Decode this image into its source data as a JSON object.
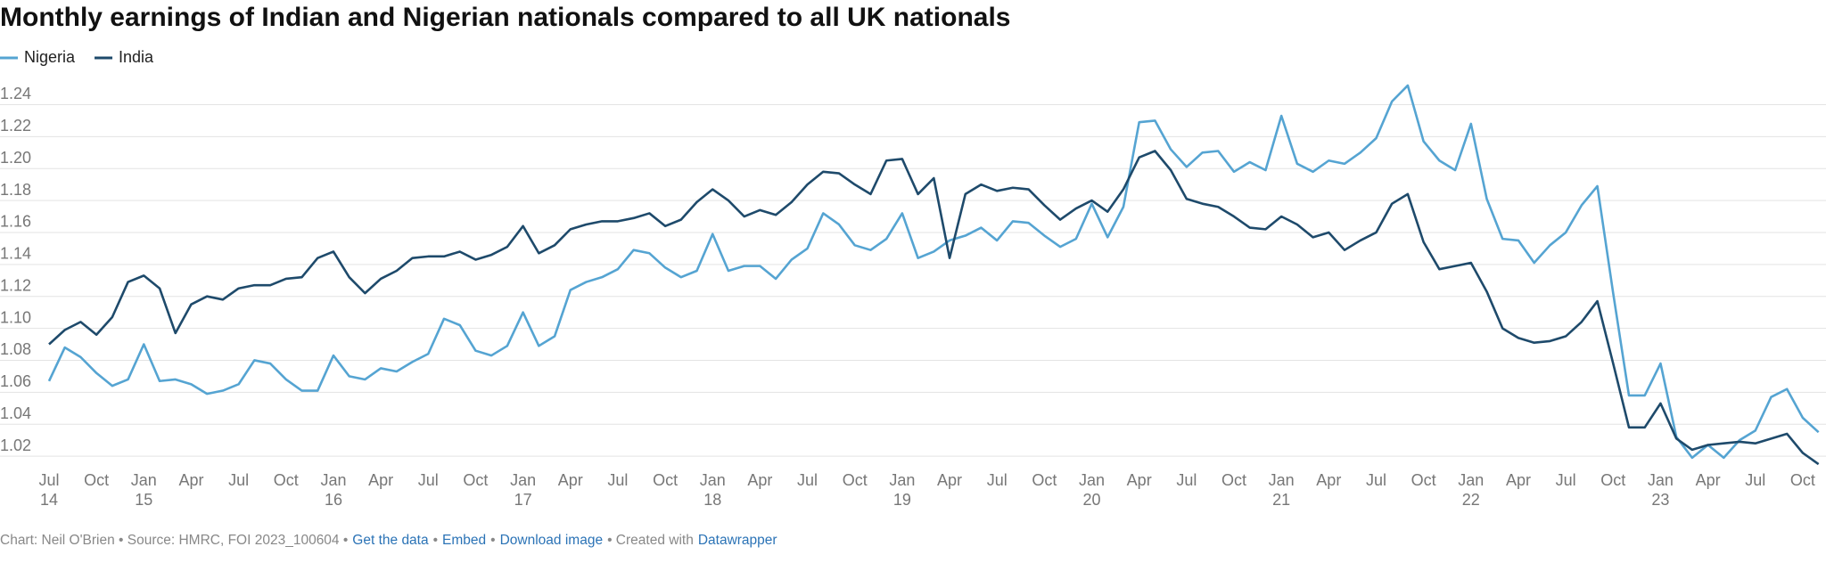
{
  "chart_data": {
    "type": "line",
    "title": "Monthly earnings of Indian and Nigerian nationals compared to all UK nationals",
    "categories": [
      "2014-07",
      "2014-08",
      "2014-09",
      "2014-10",
      "2014-11",
      "2014-12",
      "2015-01",
      "2015-02",
      "2015-03",
      "2015-04",
      "2015-05",
      "2015-06",
      "2015-07",
      "2015-08",
      "2015-09",
      "2015-10",
      "2015-11",
      "2015-12",
      "2016-01",
      "2016-02",
      "2016-03",
      "2016-04",
      "2016-05",
      "2016-06",
      "2016-07",
      "2016-08",
      "2016-09",
      "2016-10",
      "2016-11",
      "2016-12",
      "2017-01",
      "2017-02",
      "2017-03",
      "2017-04",
      "2017-05",
      "2017-06",
      "2017-07",
      "2017-08",
      "2017-09",
      "2017-10",
      "2017-11",
      "2017-12",
      "2018-01",
      "2018-02",
      "2018-03",
      "2018-04",
      "2018-05",
      "2018-06",
      "2018-07",
      "2018-08",
      "2018-09",
      "2018-10",
      "2018-11",
      "2018-12",
      "2019-01",
      "2019-02",
      "2019-03",
      "2019-04",
      "2019-05",
      "2019-06",
      "2019-07",
      "2019-08",
      "2019-09",
      "2019-10",
      "2019-11",
      "2019-12",
      "2020-01",
      "2020-02",
      "2020-03",
      "2020-04",
      "2020-05",
      "2020-06",
      "2020-07",
      "2020-08",
      "2020-09",
      "2020-10",
      "2020-11",
      "2020-12",
      "2021-01",
      "2021-02",
      "2021-03",
      "2021-04",
      "2021-05",
      "2021-06",
      "2021-07",
      "2021-08",
      "2021-09",
      "2021-10",
      "2021-11",
      "2021-12",
      "2022-01",
      "2022-02",
      "2022-03",
      "2022-04",
      "2022-05",
      "2022-06",
      "2022-07",
      "2022-08",
      "2022-09",
      "2022-10",
      "2022-11",
      "2022-12",
      "2023-01",
      "2023-02",
      "2023-03",
      "2023-04",
      "2023-05",
      "2023-06",
      "2023-07",
      "2023-08",
      "2023-09",
      "2023-10",
      "2023-11"
    ],
    "series": [
      {
        "name": "Nigeria",
        "color": "#55a4d2",
        "values": [
          1.067,
          1.088,
          1.082,
          1.072,
          1.064,
          1.068,
          1.09,
          1.067,
          1.068,
          1.065,
          1.059,
          1.061,
          1.065,
          1.08,
          1.078,
          1.068,
          1.061,
          1.061,
          1.083,
          1.07,
          1.068,
          1.075,
          1.073,
          1.079,
          1.084,
          1.106,
          1.102,
          1.086,
          1.083,
          1.089,
          1.11,
          1.089,
          1.095,
          1.124,
          1.129,
          1.132,
          1.137,
          1.149,
          1.147,
          1.138,
          1.132,
          1.136,
          1.159,
          1.136,
          1.139,
          1.139,
          1.131,
          1.143,
          1.15,
          1.172,
          1.165,
          1.152,
          1.149,
          1.156,
          1.172,
          1.144,
          1.148,
          1.155,
          1.158,
          1.163,
          1.155,
          1.167,
          1.166,
          1.158,
          1.151,
          1.156,
          1.178,
          1.157,
          1.176,
          1.229,
          1.23,
          1.212,
          1.201,
          1.21,
          1.211,
          1.198,
          1.204,
          1.199,
          1.233,
          1.203,
          1.198,
          1.205,
          1.203,
          1.21,
          1.219,
          1.242,
          1.252,
          1.217,
          1.205,
          1.199,
          1.228,
          1.181,
          1.156,
          1.155,
          1.141,
          1.152,
          1.16,
          1.177,
          1.189,
          1.122,
          1.058,
          1.058,
          1.078,
          1.032,
          1.019,
          1.027,
          1.019,
          1.03,
          1.036,
          1.057,
          1.062,
          1.044,
          1.035
        ]
      },
      {
        "name": "India",
        "color": "#1e4a6b",
        "values": [
          1.09,
          1.099,
          1.104,
          1.096,
          1.107,
          1.129,
          1.133,
          1.125,
          1.097,
          1.115,
          1.12,
          1.118,
          1.125,
          1.127,
          1.127,
          1.131,
          1.132,
          1.144,
          1.148,
          1.132,
          1.122,
          1.131,
          1.136,
          1.144,
          1.145,
          1.145,
          1.148,
          1.143,
          1.146,
          1.151,
          1.164,
          1.147,
          1.152,
          1.162,
          1.165,
          1.167,
          1.167,
          1.169,
          1.172,
          1.164,
          1.168,
          1.179,
          1.187,
          1.18,
          1.17,
          1.174,
          1.171,
          1.179,
          1.19,
          1.198,
          1.197,
          1.19,
          1.184,
          1.205,
          1.206,
          1.184,
          1.194,
          1.144,
          1.184,
          1.19,
          1.186,
          1.188,
          1.187,
          1.177,
          1.168,
          1.175,
          1.18,
          1.173,
          1.187,
          1.207,
          1.211,
          1.199,
          1.181,
          1.178,
          1.176,
          1.17,
          1.163,
          1.162,
          1.17,
          1.165,
          1.157,
          1.16,
          1.149,
          1.155,
          1.16,
          1.178,
          1.184,
          1.154,
          1.137,
          1.139,
          1.141,
          1.123,
          1.1,
          1.094,
          1.091,
          1.092,
          1.095,
          1.104,
          1.117,
          1.078,
          1.038,
          1.038,
          1.053,
          1.031,
          1.024,
          1.027,
          1.028,
          1.029,
          1.028,
          1.031,
          1.034,
          1.022,
          1.015
        ]
      }
    ],
    "ylim": [
      1.01,
      1.26
    ],
    "yticks": [
      1.02,
      1.04,
      1.06,
      1.08,
      {
        "value": 1.1,
        "label": "1.10"
      },
      1.12,
      1.14,
      1.16,
      1.18,
      {
        "value": 1.2,
        "label": "1.20"
      },
      1.22,
      1.24
    ],
    "xticks": [
      {
        "value": "2014-07",
        "label": "Jul"
      },
      {
        "value": "2014-10",
        "label": "Oct"
      },
      {
        "value": "2015-01",
        "label": "Jan"
      },
      {
        "value": "2015-04",
        "label": "Apr"
      },
      {
        "value": "2015-07",
        "label": "Jul"
      },
      {
        "value": "2015-10",
        "label": "Oct"
      },
      {
        "value": "2016-01",
        "label": "Jan"
      },
      {
        "value": "2016-04",
        "label": "Apr"
      },
      {
        "value": "2016-07",
        "label": "Jul"
      },
      {
        "value": "2016-10",
        "label": "Oct"
      },
      {
        "value": "2017-01",
        "label": "Jan"
      },
      {
        "value": "2017-04",
        "label": "Apr"
      },
      {
        "value": "2017-07",
        "label": "Jul"
      },
      {
        "value": "2017-10",
        "label": "Oct"
      },
      {
        "value": "2018-01",
        "label": "Jan"
      },
      {
        "value": "2018-04",
        "label": "Apr"
      },
      {
        "value": "2018-07",
        "label": "Jul"
      },
      {
        "value": "2018-10",
        "label": "Oct"
      },
      {
        "value": "2019-01",
        "label": "Jan"
      },
      {
        "value": "2019-04",
        "label": "Apr"
      },
      {
        "value": "2019-07",
        "label": "Jul"
      },
      {
        "value": "2019-10",
        "label": "Oct"
      },
      {
        "value": "2020-01",
        "label": "Jan"
      },
      {
        "value": "2020-04",
        "label": "Apr"
      },
      {
        "value": "2020-07",
        "label": "Jul"
      },
      {
        "value": "2020-10",
        "label": "Oct"
      },
      {
        "value": "2021-01",
        "label": "Jan"
      },
      {
        "value": "2021-04",
        "label": "Apr"
      },
      {
        "value": "2021-07",
        "label": "Jul"
      },
      {
        "value": "2021-10",
        "label": "Oct"
      },
      {
        "value": "2022-01",
        "label": "Jan"
      },
      {
        "value": "2022-04",
        "label": "Apr"
      },
      {
        "value": "2022-07",
        "label": "Jul"
      },
      {
        "value": "2022-10",
        "label": "Oct"
      },
      {
        "value": "2023-01",
        "label": "Jan"
      },
      {
        "value": "2023-04",
        "label": "Apr"
      },
      {
        "value": "2023-07",
        "label": "Jul"
      },
      {
        "value": "2023-10",
        "label": "Oct"
      }
    ],
    "xtick_years": [
      {
        "value": "2014-07",
        "label": "14"
      },
      {
        "value": "2015-01",
        "label": "15"
      },
      {
        "value": "2016-01",
        "label": "16"
      },
      {
        "value": "2017-01",
        "label": "17"
      },
      {
        "value": "2018-01",
        "label": "18"
      },
      {
        "value": "2019-01",
        "label": "19"
      },
      {
        "value": "2020-01",
        "label": "20"
      },
      {
        "value": "2021-01",
        "label": "21"
      },
      {
        "value": "2022-01",
        "label": "22"
      },
      {
        "value": "2023-01",
        "label": "23"
      }
    ],
    "grid": true,
    "legend": "top-left",
    "footer": [
      {
        "text": "Chart: Neil O'Brien • Source: HMRC, FOI 2023_100604 •",
        "link": false
      },
      {
        "text": "Get the data",
        "link": true
      },
      {
        "text": "•",
        "link": false
      },
      {
        "text": "Embed",
        "link": true
      },
      {
        "text": "•",
        "link": false
      },
      {
        "text": "Download image",
        "link": true
      },
      {
        "text": "• Created with",
        "link": false
      },
      {
        "text": "Datawrapper",
        "link": true
      }
    ]
  }
}
